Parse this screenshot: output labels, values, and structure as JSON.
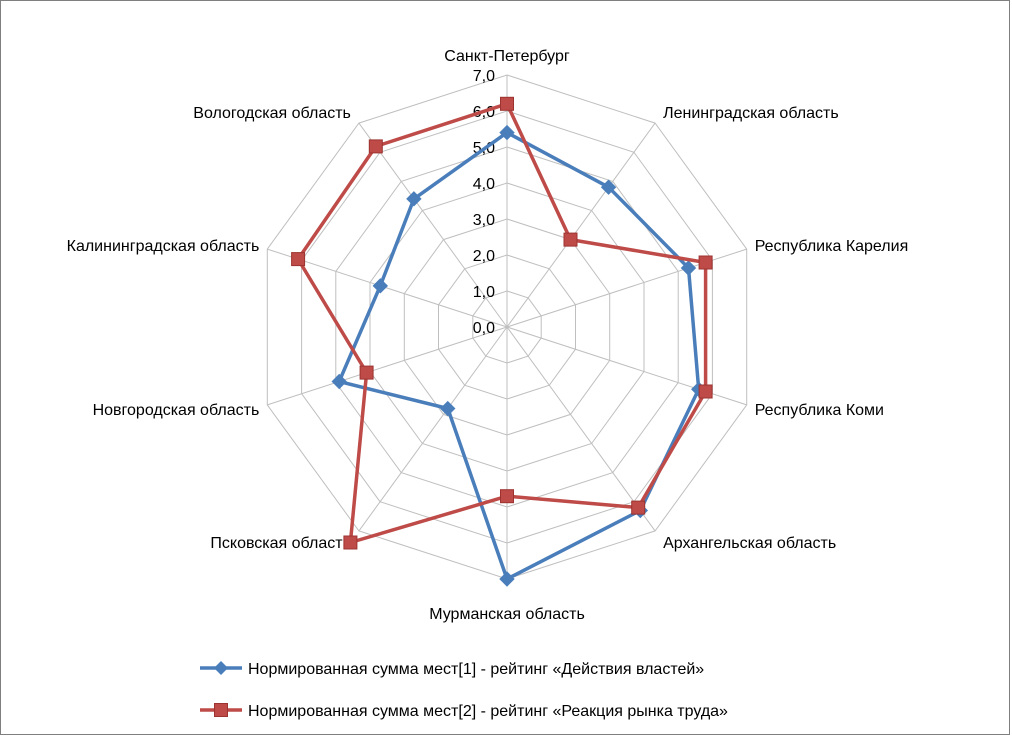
{
  "chart_data": {
    "type": "radar",
    "categories": [
      "Санкт-Петербург",
      "Ленинградская область",
      "Республика Карелия",
      "Республика Коми",
      "Архангельская область",
      "Мурманская область",
      "Псковская область",
      "Новгородская область",
      "Калининградская область",
      "Вологодская область"
    ],
    "r_ticks": [
      "0,0",
      "1,0",
      "2,0",
      "3,0",
      "4,0",
      "5,0",
      "6,0",
      "7,0"
    ],
    "rlim": [
      0,
      7
    ],
    "grid": true,
    "legend_position": "bottom",
    "series": [
      {
        "name": "Нормированная сумма мест[1] - рейтинг «Действия властей»",
        "color": "#4a7ebb",
        "marker": "diamond",
        "values": [
          5.4,
          4.8,
          5.3,
          5.6,
          6.3,
          7.0,
          2.8,
          4.9,
          3.7,
          4.4
        ]
      },
      {
        "name": "Нормированная сумма мест[2] - рейтинг «Реакция рынка труда»",
        "color": "#be4b48",
        "marker": "square",
        "values": [
          6.2,
          3.0,
          5.8,
          5.8,
          6.2,
          4.7,
          7.4,
          4.1,
          6.1,
          6.2
        ]
      }
    ]
  }
}
